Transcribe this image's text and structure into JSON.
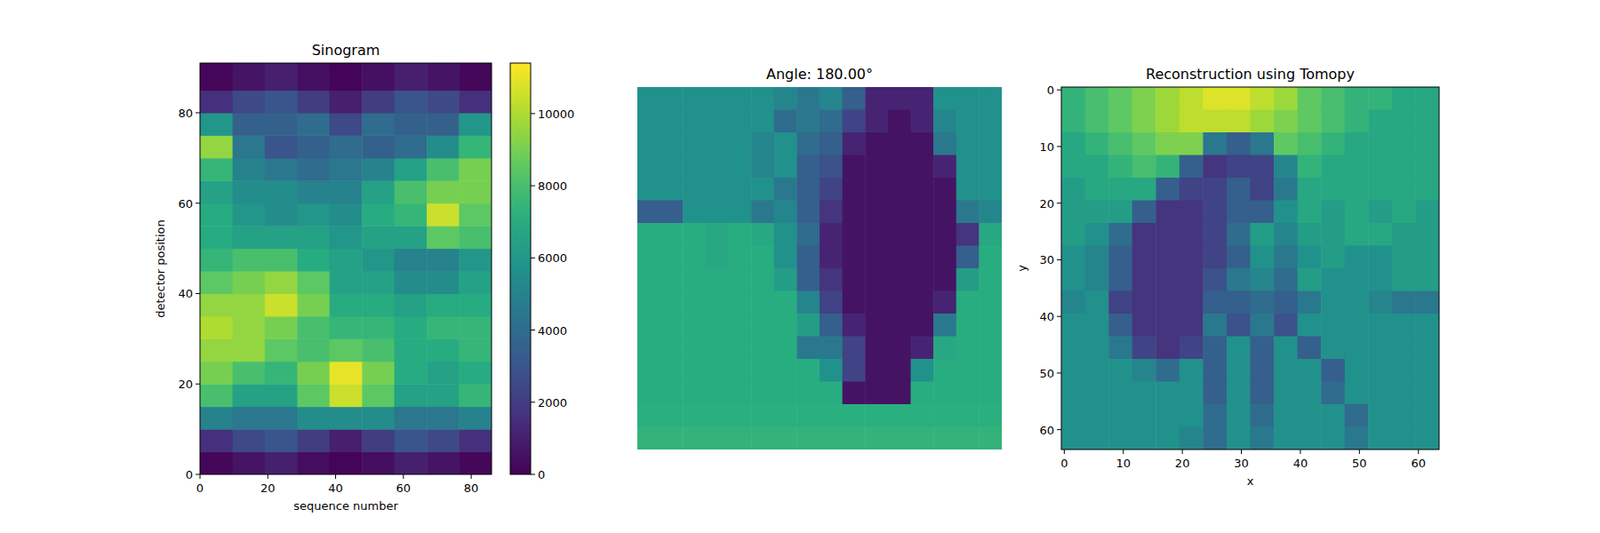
{
  "chart_data": [
    {
      "type": "heatmap",
      "title": "Sinogram",
      "x_label": "sequence number",
      "y_label": "detector position",
      "xlim": [
        0,
        86
      ],
      "ylim": [
        0,
        91
      ],
      "xticks": [
        0,
        20,
        40,
        60,
        80
      ],
      "yticks": [
        0,
        20,
        40,
        60,
        80
      ],
      "x_edges": [
        0,
        9.6,
        19.1,
        28.7,
        38.2,
        47.8,
        57.3,
        66.9,
        76.4,
        86
      ],
      "y_edges": [
        0,
        5,
        10,
        15,
        20,
        25,
        30,
        35,
        40,
        45,
        50,
        55,
        60,
        65,
        70,
        75,
        80,
        85,
        91
      ],
      "cells": [
        [
          200,
          600,
          1000,
          400,
          100,
          400,
          1000,
          600,
          200
        ],
        [
          1500,
          2500,
          3000,
          2000,
          1000,
          2000,
          3000,
          2500,
          1500
        ],
        [
          5000,
          4500,
          4500,
          5500,
          5500,
          5500,
          4500,
          4500,
          5000
        ],
        [
          8000,
          6500,
          6500,
          8500,
          10500,
          8500,
          6500,
          6500,
          7500
        ],
        [
          9000,
          8000,
          7500,
          9000,
          11000,
          9000,
          7000,
          6500,
          7000
        ],
        [
          9500,
          9500,
          8500,
          8000,
          8500,
          8000,
          7000,
          7000,
          7500
        ],
        [
          10000,
          9500,
          9000,
          8000,
          7500,
          7500,
          7000,
          7500,
          7500
        ],
        [
          9500,
          9500,
          10500,
          9000,
          7000,
          7000,
          6500,
          7000,
          7000
        ],
        [
          8500,
          9000,
          9500,
          8500,
          6500,
          6500,
          5500,
          5500,
          6500
        ],
        [
          7500,
          8000,
          8000,
          7000,
          6500,
          6000,
          5000,
          5000,
          6000
        ],
        [
          7000,
          6500,
          6500,
          6500,
          6000,
          6500,
          6500,
          8500,
          8000
        ],
        [
          7000,
          6000,
          5500,
          6000,
          5500,
          7000,
          7500,
          10500,
          8500
        ],
        [
          6500,
          5500,
          5500,
          5000,
          5000,
          6500,
          8000,
          9000,
          9000
        ],
        [
          7500,
          5000,
          4500,
          4000,
          4500,
          5000,
          6500,
          8000,
          9000
        ],
        [
          9500,
          4500,
          3000,
          3500,
          4000,
          3500,
          4000,
          5500,
          7500
        ],
        [
          6000,
          3500,
          3500,
          4000,
          2500,
          4000,
          3500,
          3500,
          6000
        ],
        [
          1500,
          2500,
          3000,
          2000,
          1000,
          2000,
          3000,
          2500,
          1500
        ],
        [
          200,
          600,
          1000,
          500,
          100,
          500,
          1000,
          600,
          200
        ]
      ],
      "color_range": [
        0,
        11400
      ],
      "color_ticks": [
        0,
        2000,
        4000,
        6000,
        8000,
        10000
      ]
    },
    {
      "type": "heatmap",
      "title": "Angle: 180.00°",
      "tick_labels": false,
      "xlim": [
        -0.5,
        63.5
      ],
      "ylim": [
        63.5,
        -0.5
      ],
      "x_edges": [
        -0.5,
        3.5,
        7.5,
        11.5,
        15.5,
        19.5,
        23.5,
        27.5,
        31.5,
        35.5,
        39.5,
        43.5,
        47.5,
        51.5,
        55.5,
        59.5,
        63.5
      ],
      "y_edges": [
        -0.5,
        3.5,
        7.5,
        11.5,
        15.5,
        19.5,
        23.5,
        27.5,
        31.5,
        35.5,
        39.5,
        43.5,
        47.5,
        51.5,
        55.5,
        59.5,
        63.5
      ],
      "cells": [
        [
          0.5,
          0.5,
          0.5,
          0.5,
          0.5,
          0.5,
          0.45,
          0.4,
          0.45,
          0.3,
          0.1,
          0.1,
          0.1,
          0.5,
          0.5,
          0.5
        ],
        [
          0.5,
          0.5,
          0.5,
          0.5,
          0.5,
          0.5,
          0.35,
          0.4,
          0.35,
          0.2,
          0.1,
          0.05,
          0.1,
          0.45,
          0.5,
          0.5
        ],
        [
          0.5,
          0.5,
          0.5,
          0.5,
          0.5,
          0.45,
          0.5,
          0.35,
          0.3,
          0.1,
          0.05,
          0.05,
          0.05,
          0.4,
          0.5,
          0.5
        ],
        [
          0.5,
          0.5,
          0.5,
          0.5,
          0.5,
          0.45,
          0.5,
          0.3,
          0.25,
          0.05,
          0.05,
          0.05,
          0.05,
          0.1,
          0.5,
          0.5
        ],
        [
          0.5,
          0.5,
          0.5,
          0.5,
          0.5,
          0.5,
          0.4,
          0.3,
          0.2,
          0.05,
          0.05,
          0.05,
          0.05,
          0.05,
          0.5,
          0.5
        ],
        [
          0.3,
          0.3,
          0.5,
          0.5,
          0.5,
          0.4,
          0.45,
          0.3,
          0.15,
          0.05,
          0.05,
          0.05,
          0.05,
          0.05,
          0.4,
          0.45
        ],
        [
          0.62,
          0.62,
          0.62,
          0.6,
          0.62,
          0.6,
          0.5,
          0.35,
          0.1,
          0.05,
          0.05,
          0.05,
          0.05,
          0.05,
          0.15,
          0.6
        ],
        [
          0.62,
          0.62,
          0.62,
          0.6,
          0.62,
          0.62,
          0.5,
          0.3,
          0.1,
          0.05,
          0.05,
          0.05,
          0.05,
          0.05,
          0.3,
          0.62
        ],
        [
          0.62,
          0.62,
          0.62,
          0.62,
          0.62,
          0.62,
          0.55,
          0.3,
          0.15,
          0.05,
          0.05,
          0.05,
          0.05,
          0.05,
          0.55,
          0.62
        ],
        [
          0.62,
          0.62,
          0.62,
          0.62,
          0.62,
          0.62,
          0.62,
          0.45,
          0.2,
          0.05,
          0.05,
          0.05,
          0.05,
          0.1,
          0.62,
          0.62
        ],
        [
          0.62,
          0.62,
          0.62,
          0.62,
          0.62,
          0.62,
          0.62,
          0.55,
          0.3,
          0.1,
          0.05,
          0.05,
          0.05,
          0.4,
          0.62,
          0.62
        ],
        [
          0.62,
          0.62,
          0.62,
          0.62,
          0.62,
          0.62,
          0.62,
          0.4,
          0.4,
          0.2,
          0.05,
          0.05,
          0.1,
          0.6,
          0.62,
          0.62
        ],
        [
          0.62,
          0.62,
          0.62,
          0.62,
          0.62,
          0.62,
          0.62,
          0.62,
          0.5,
          0.2,
          0.05,
          0.05,
          0.5,
          0.62,
          0.62,
          0.62
        ],
        [
          0.62,
          0.62,
          0.62,
          0.62,
          0.62,
          0.62,
          0.62,
          0.62,
          0.62,
          0.05,
          0.05,
          0.05,
          0.62,
          0.62,
          0.62,
          0.62
        ],
        [
          0.63,
          0.63,
          0.63,
          0.63,
          0.63,
          0.63,
          0.63,
          0.63,
          0.63,
          0.63,
          0.63,
          0.63,
          0.63,
          0.63,
          0.63,
          0.63
        ],
        [
          0.65,
          0.65,
          0.65,
          0.65,
          0.65,
          0.65,
          0.65,
          0.65,
          0.65,
          0.65,
          0.65,
          0.65,
          0.65,
          0.65,
          0.65,
          0.65
        ]
      ],
      "color_range": [
        0,
        1
      ]
    },
    {
      "type": "heatmap",
      "title": "Reconstruction using Tomopy",
      "x_label": "x",
      "y_label": "y",
      "xlim": [
        -0.5,
        63.5
      ],
      "ylim": [
        63.5,
        -0.5
      ],
      "xticks": [
        0,
        10,
        20,
        30,
        40,
        50,
        60
      ],
      "yticks": [
        0,
        10,
        20,
        30,
        40,
        50,
        60
      ],
      "x_edges": [
        -0.5,
        3.5,
        7.5,
        11.5,
        15.5,
        19.5,
        23.5,
        27.5,
        31.5,
        35.5,
        39.5,
        43.5,
        47.5,
        51.5,
        55.5,
        59.5,
        63.5
      ],
      "y_edges": [
        -0.5,
        3.5,
        7.5,
        11.5,
        15.5,
        19.5,
        23.5,
        27.5,
        31.5,
        35.5,
        39.5,
        43.5,
        47.5,
        51.5,
        55.5,
        59.5,
        63.5
      ],
      "cells": [
        [
          0.65,
          0.7,
          0.75,
          0.8,
          0.85,
          0.9,
          0.95,
          0.95,
          0.9,
          0.85,
          0.75,
          0.7,
          0.65,
          0.65,
          0.6,
          0.6
        ],
        [
          0.65,
          0.7,
          0.75,
          0.8,
          0.85,
          0.9,
          0.9,
          0.9,
          0.85,
          0.8,
          0.75,
          0.7,
          0.65,
          0.6,
          0.6,
          0.6
        ],
        [
          0.6,
          0.65,
          0.7,
          0.75,
          0.8,
          0.8,
          0.4,
          0.3,
          0.4,
          0.75,
          0.7,
          0.65,
          0.6,
          0.6,
          0.6,
          0.6
        ],
        [
          0.6,
          0.6,
          0.65,
          0.7,
          0.65,
          0.3,
          0.15,
          0.2,
          0.2,
          0.45,
          0.65,
          0.6,
          0.6,
          0.6,
          0.6,
          0.6
        ],
        [
          0.55,
          0.6,
          0.6,
          0.6,
          0.3,
          0.2,
          0.2,
          0.3,
          0.2,
          0.4,
          0.6,
          0.6,
          0.6,
          0.6,
          0.6,
          0.6
        ],
        [
          0.55,
          0.55,
          0.55,
          0.3,
          0.15,
          0.15,
          0.2,
          0.3,
          0.3,
          0.5,
          0.6,
          0.55,
          0.6,
          0.55,
          0.6,
          0.55
        ],
        [
          0.55,
          0.5,
          0.35,
          0.15,
          0.15,
          0.15,
          0.2,
          0.35,
          0.55,
          0.45,
          0.55,
          0.55,
          0.6,
          0.6,
          0.55,
          0.55
        ],
        [
          0.5,
          0.45,
          0.3,
          0.15,
          0.15,
          0.15,
          0.2,
          0.3,
          0.5,
          0.4,
          0.5,
          0.55,
          0.5,
          0.5,
          0.55,
          0.55
        ],
        [
          0.5,
          0.45,
          0.3,
          0.15,
          0.15,
          0.15,
          0.25,
          0.4,
          0.45,
          0.35,
          0.55,
          0.5,
          0.5,
          0.5,
          0.55,
          0.55
        ],
        [
          0.45,
          0.5,
          0.2,
          0.15,
          0.15,
          0.15,
          0.3,
          0.3,
          0.35,
          0.3,
          0.4,
          0.5,
          0.5,
          0.45,
          0.4,
          0.4
        ],
        [
          0.5,
          0.5,
          0.3,
          0.15,
          0.15,
          0.15,
          0.4,
          0.25,
          0.4,
          0.25,
          0.5,
          0.5,
          0.5,
          0.5,
          0.5,
          0.5
        ],
        [
          0.5,
          0.5,
          0.4,
          0.2,
          0.15,
          0.2,
          0.3,
          0.5,
          0.3,
          0.5,
          0.3,
          0.5,
          0.5,
          0.5,
          0.5,
          0.5
        ],
        [
          0.5,
          0.5,
          0.5,
          0.45,
          0.35,
          0.5,
          0.3,
          0.5,
          0.3,
          0.5,
          0.5,
          0.3,
          0.5,
          0.5,
          0.5,
          0.5
        ],
        [
          0.5,
          0.5,
          0.5,
          0.5,
          0.5,
          0.5,
          0.3,
          0.5,
          0.3,
          0.5,
          0.5,
          0.35,
          0.5,
          0.5,
          0.5,
          0.5
        ],
        [
          0.5,
          0.5,
          0.5,
          0.5,
          0.5,
          0.5,
          0.35,
          0.5,
          0.35,
          0.5,
          0.5,
          0.5,
          0.35,
          0.5,
          0.5,
          0.5
        ],
        [
          0.5,
          0.5,
          0.5,
          0.5,
          0.5,
          0.45,
          0.35,
          0.5,
          0.4,
          0.5,
          0.5,
          0.5,
          0.4,
          0.5,
          0.5,
          0.5
        ]
      ],
      "color_range": [
        0,
        1
      ]
    }
  ]
}
